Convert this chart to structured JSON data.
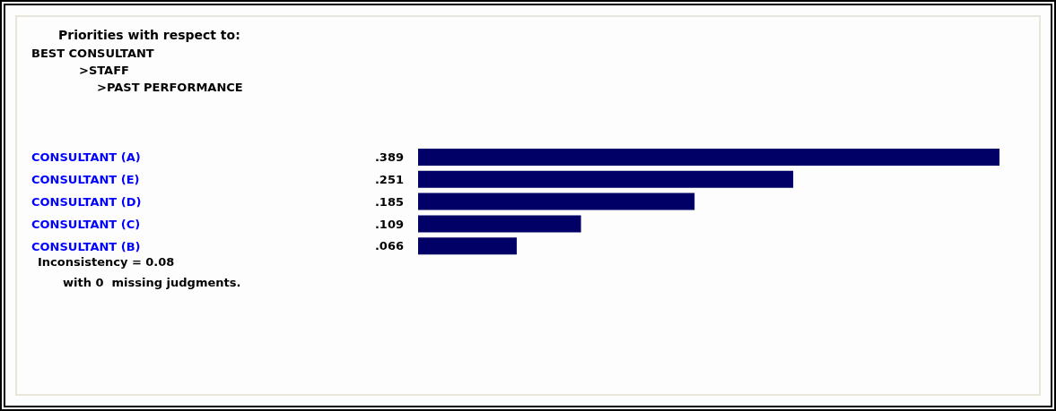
{
  "chart_data": {
    "type": "bar",
    "orientation": "horizontal",
    "title": "Priorities with respect to:",
    "subtitle": "BEST CONSULTANT\n>STAFF\n>PAST PERFORMANCE",
    "categories": [
      "CONSULTANT (A)",
      "CONSULTANT (E)",
      "CONSULTANT (D)",
      "CONSULTANT (C)",
      "CONSULTANT (B)"
    ],
    "values": [
      0.389,
      0.251,
      0.185,
      0.109,
      0.066
    ],
    "value_labels": [
      ".389",
      ".251",
      ".185",
      ".109",
      ".066"
    ],
    "color": "#000066",
    "annotations": [
      "Inconsistency = 0.08",
      "with 0  missing judgments."
    ]
  }
}
